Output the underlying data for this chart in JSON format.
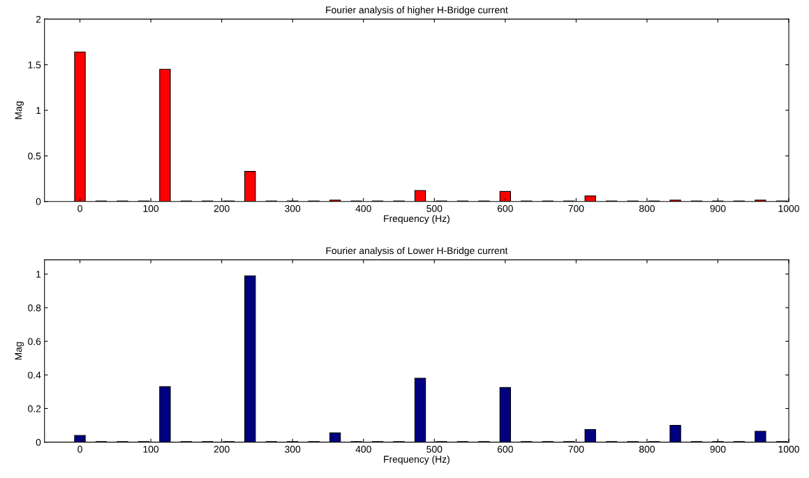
{
  "chart_data": [
    {
      "type": "bar",
      "title": "Fourier analysis of higher H-Bridge current",
      "xlabel": "Frequency (Hz)",
      "ylabel": "Mag",
      "color": "#ff0000",
      "x": [
        0,
        30,
        60,
        90,
        120,
        150,
        180,
        210,
        240,
        270,
        300,
        330,
        360,
        390,
        420,
        450,
        480,
        510,
        540,
        570,
        600,
        630,
        660,
        690,
        720,
        750,
        780,
        810,
        840,
        870,
        900,
        930,
        960,
        990
      ],
      "values": [
        1.64,
        0.005,
        0.005,
        0.005,
        1.45,
        0.005,
        0.005,
        0.005,
        0.33,
        0.005,
        0.005,
        0.005,
        0.015,
        0.005,
        0.005,
        0.005,
        0.12,
        0.005,
        0.005,
        0.005,
        0.11,
        0.005,
        0.005,
        0.005,
        0.06,
        0.005,
        0.005,
        0.005,
        0.015,
        0.005,
        0.005,
        0.005,
        0.015,
        0.005
      ],
      "xlim": [
        -50,
        1000
      ],
      "ylim": [
        0,
        2
      ],
      "xticks": [
        0,
        100,
        200,
        300,
        400,
        500,
        600,
        700,
        800,
        900,
        1000
      ],
      "yticks": [
        0,
        0.5,
        1,
        1.5,
        2
      ],
      "grid": false,
      "legend": false
    },
    {
      "type": "bar",
      "title": "Fourier analysis of Lower H-Bridge current",
      "xlabel": "Frequency (Hz)",
      "ylabel": "Mag",
      "color": "#000080",
      "x": [
        0,
        30,
        60,
        90,
        120,
        150,
        180,
        210,
        240,
        270,
        300,
        330,
        360,
        390,
        420,
        450,
        480,
        510,
        540,
        570,
        600,
        630,
        660,
        690,
        720,
        750,
        780,
        810,
        840,
        870,
        900,
        930,
        960,
        990
      ],
      "values": [
        0.04,
        0.003,
        0.003,
        0.003,
        0.33,
        0.003,
        0.003,
        0.003,
        0.99,
        0.003,
        0.003,
        0.003,
        0.055,
        0.003,
        0.003,
        0.003,
        0.38,
        0.003,
        0.003,
        0.003,
        0.325,
        0.003,
        0.003,
        0.003,
        0.075,
        0.003,
        0.003,
        0.003,
        0.1,
        0.003,
        0.003,
        0.003,
        0.065,
        0.003
      ],
      "xlim": [
        -50,
        1000
      ],
      "ylim": [
        0,
        1.085
      ],
      "xticks": [
        0,
        100,
        200,
        300,
        400,
        500,
        600,
        700,
        800,
        900,
        1000
      ],
      "yticks": [
        0,
        0.2,
        0.4,
        0.6,
        0.8,
        1
      ],
      "grid": false,
      "legend": false
    }
  ]
}
